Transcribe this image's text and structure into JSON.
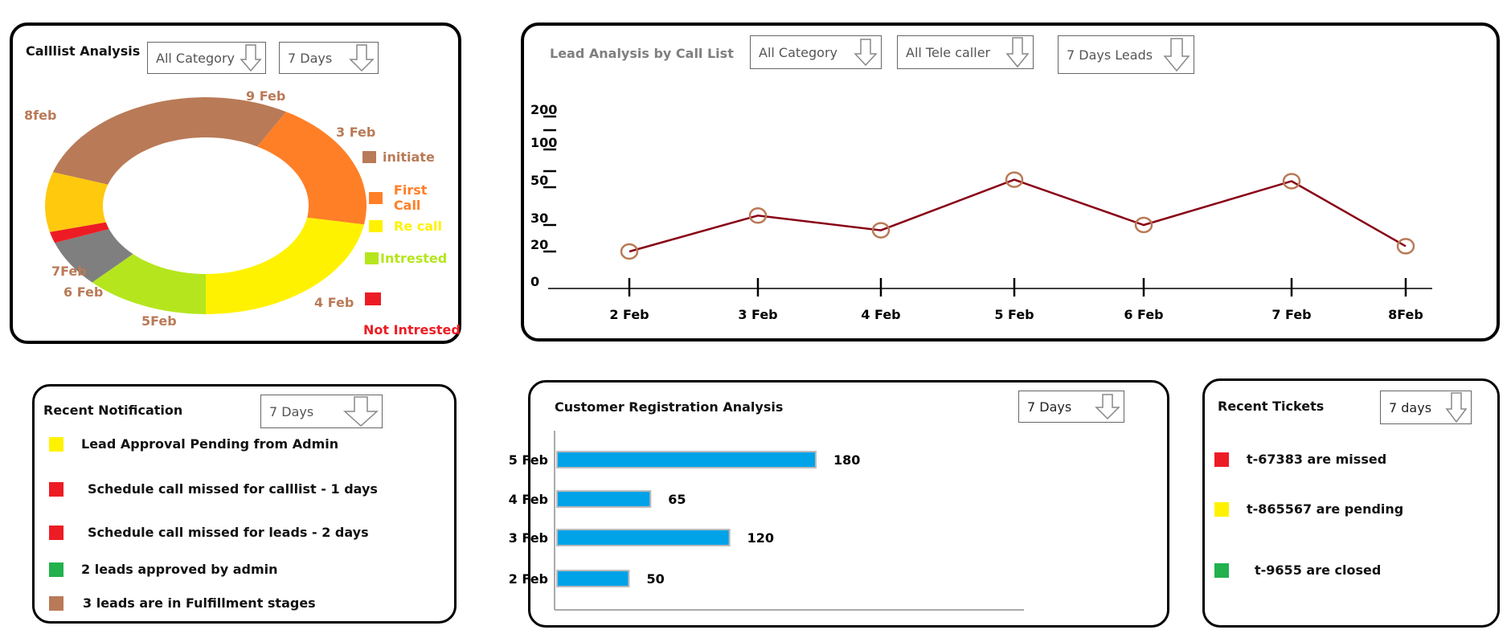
{
  "colors": {
    "initiate": "#b97a57",
    "first_call": "#ff7f27",
    "re_call": "#fff200",
    "intrested": "#b5e61d",
    "not_intrested": "#ed1c24",
    "gray": "#7f7f7f",
    "gold": "#ffc90e",
    "line": "#880015",
    "marker": "#b97a57",
    "bar": "#00a2e8",
    "green": "#22b14c"
  },
  "calllist": {
    "title": "Calllist Analysis",
    "filter_category": "All Category",
    "filter_days": "7 Days",
    "donut_labels": [
      "9 Feb",
      "3 Feb",
      "4 Feb",
      "5Feb",
      "6 Feb",
      "7Feb",
      "8feb"
    ],
    "legend": [
      {
        "label": "initiate",
        "color": "#b97a57"
      },
      {
        "label": "First Call",
        "color": "#ff7f27"
      },
      {
        "label": "Re call",
        "color": "#fff200"
      },
      {
        "label": "Intrested",
        "color": "#b5e61d"
      },
      {
        "label": "Not Intrested",
        "color": "#ed1c24"
      }
    ]
  },
  "lead": {
    "title": "Lead Analysis by Call List",
    "filter_category": "All Category",
    "filter_caller": "All Tele caller",
    "filter_days": "7 Days Leads"
  },
  "notifications": {
    "title": "Recent Notification",
    "filter_days": "7 Days",
    "items": [
      {
        "text": "Lead Approval Pending from Admin",
        "color": "#fff200"
      },
      {
        "text": "Schedule call missed for calllist - 1 days",
        "color": "#ed1c24"
      },
      {
        "text": "Schedule call missed for leads - 2 days",
        "color": "#ed1c24"
      },
      {
        "text": "2 leads approved by admin",
        "color": "#22b14c"
      },
      {
        "text": "3 leads are in Fulfillment stages",
        "color": "#b97a57"
      }
    ]
  },
  "registration": {
    "title": "Customer Registration Analysis",
    "filter_days": "7 Days"
  },
  "tickets": {
    "title": "Recent Tickets",
    "filter_days": "7 days",
    "items": [
      {
        "text": "t-67383 are missed",
        "color": "#ed1c24"
      },
      {
        "text": "t-865567 are pending",
        "color": "#fff200"
      },
      {
        "text": "t-9655 are closed",
        "color": "#22b14c"
      }
    ]
  },
  "chart_data": [
    {
      "type": "line",
      "title": "Lead Analysis by Call List",
      "x": [
        "2 Feb",
        "3 Feb",
        "4 Feb",
        "5 Feb",
        "6 Feb",
        "7 Feb",
        "8Feb"
      ],
      "y_ticks": [
        "0",
        "20",
        "30",
        "50",
        "100",
        "200"
      ],
      "series": [
        {
          "values": [
            20,
            35,
            28,
            60,
            30,
            58,
            22
          ]
        }
      ]
    },
    {
      "type": "bar",
      "orientation": "horizontal",
      "title": "Customer Registration Analysis",
      "categories": [
        "5 Feb",
        "4 Feb",
        "3 Feb",
        "2 Feb"
      ],
      "values": [
        180,
        65,
        120,
        50
      ]
    }
  ]
}
